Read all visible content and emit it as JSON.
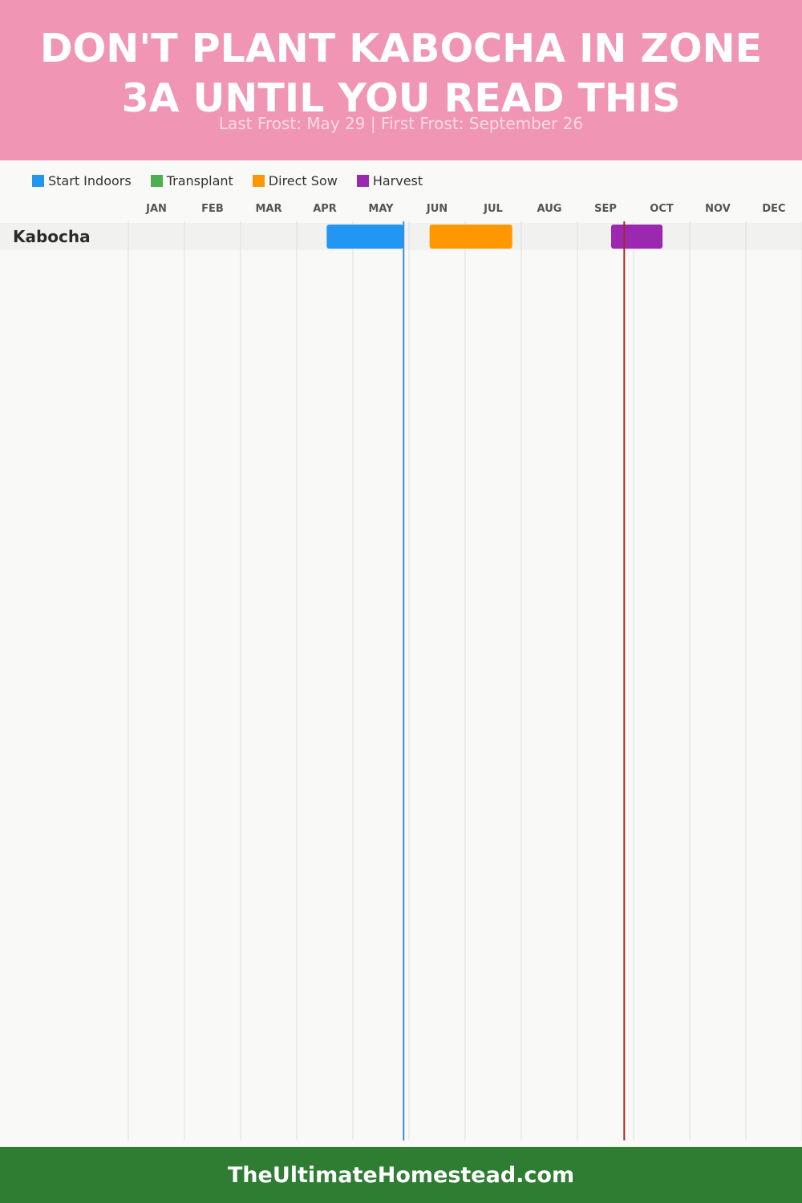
{
  "header": {
    "title": "DON'T PLANT KABOCHA IN ZONE 3A UNTIL YOU READ THIS",
    "subtitle": "Last Frost: May 29 | First Frost: September 26"
  },
  "legend": [
    {
      "label": "Start Indoors",
      "color": "#2196f3"
    },
    {
      "label": "Transplant",
      "color": "#4caf50"
    },
    {
      "label": "Direct Sow",
      "color": "#ff9800"
    },
    {
      "label": "Harvest",
      "color": "#9c27b0"
    }
  ],
  "chart_data": {
    "type": "gantt",
    "title": "DON'T PLANT KABOCHA IN ZONE 3A UNTIL YOU READ THIS",
    "subtitle": "Last Frost: May 29 | First Frost: September 26",
    "months": [
      "JAN",
      "FEB",
      "MAR",
      "APR",
      "MAY",
      "JUN",
      "JUL",
      "AUG",
      "SEP",
      "OCT",
      "NOV",
      "DEC"
    ],
    "rows": [
      {
        "crop": "Kabocha",
        "tasks": [
          {
            "activity": "Start Indoors",
            "start": "Apr 17",
            "end": "May 29",
            "color": "#2196f3"
          },
          {
            "activity": "Direct Sow",
            "start": "Jun 12",
            "end": "Jul 27",
            "color": "#ff9800"
          },
          {
            "activity": "Harvest",
            "start": "Sep 19",
            "end": "Oct 17",
            "color": "#9c27b0"
          }
        ]
      }
    ],
    "markers": [
      {
        "label": "Last Frost",
        "date": "May 29",
        "color": "#3a8fd8"
      },
      {
        "label": "First Frost",
        "date": "Sep 26",
        "color": "#a52a2a"
      }
    ],
    "grid": true,
    "legend_position": "top-left"
  },
  "footer": {
    "text": "TheUltimateHomestead.com"
  }
}
